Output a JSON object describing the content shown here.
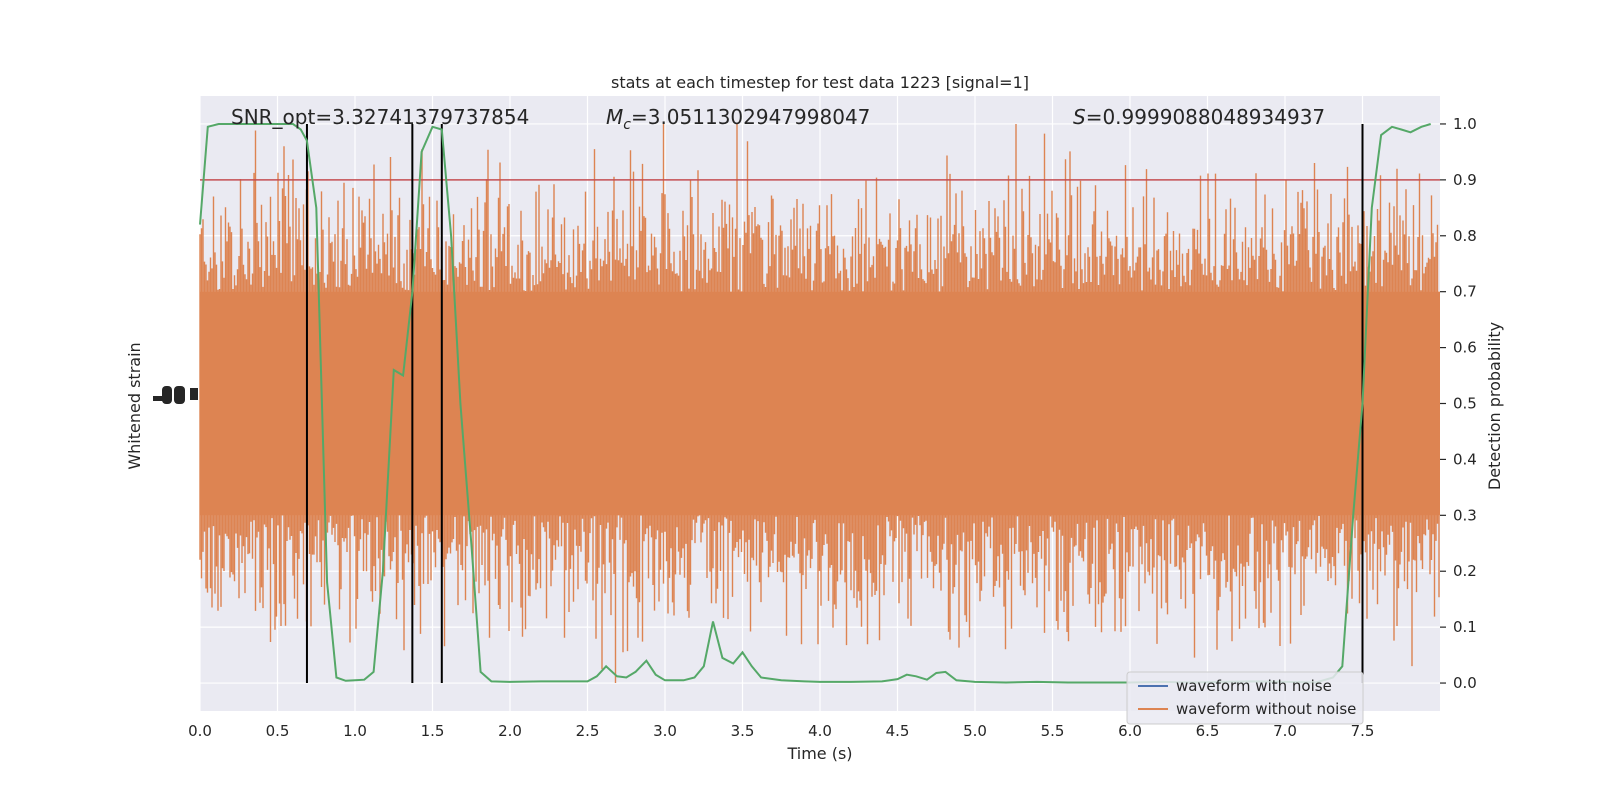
{
  "chart_data": {
    "type": "line",
    "title": "stats at each timestep for test data 1223 [signal=1]",
    "xlabel": "Time (s)",
    "ylabel_left": "Whitened strain",
    "ylabel_right": "Detection probability",
    "xlim": [
      0.0,
      8.0
    ],
    "ylim_right": [
      -0.05,
      1.05
    ],
    "xticks": [
      "0.0",
      "0.5",
      "1.0",
      "1.5",
      "2.0",
      "2.5",
      "3.0",
      "3.5",
      "4.0",
      "4.5",
      "5.0",
      "5.5",
      "6.0",
      "6.5",
      "7.0",
      "7.5"
    ],
    "yticks_right": [
      "0.0",
      "0.1",
      "0.2",
      "0.3",
      "0.4",
      "0.5",
      "0.6",
      "0.7",
      "0.8",
      "0.9",
      "1.0"
    ],
    "annotations": {
      "snr": "SNR_opt=3.32741379737854",
      "mc_symbol": "M",
      "mc_sub": "c",
      "mc_value": "=3.0511302947998047",
      "s_symbol": "S",
      "s_value": "=0.9999088048934937"
    },
    "threshold": 0.9,
    "vlines_x": [
      0.69,
      1.37,
      1.56,
      7.5
    ],
    "legend": {
      "position": "lower right",
      "entries": [
        {
          "label": "waveform with noise",
          "color": "#4c72b0"
        },
        {
          "label": "waveform without noise",
          "color": "#dd8452"
        }
      ]
    },
    "colors": {
      "background": "#eaeaf2",
      "grid": "#ffffff",
      "noise_waveform": "#dd8452",
      "probability": "#55a868",
      "threshold_line": "#c44e52",
      "vline": "#000000"
    },
    "series": [
      {
        "name": "Detection probability",
        "x": [
          0.0,
          0.05,
          0.12,
          0.2,
          0.3,
          0.4,
          0.5,
          0.6,
          0.65,
          0.69,
          0.75,
          0.82,
          0.88,
          0.94,
          1.0,
          1.06,
          1.12,
          1.18,
          1.25,
          1.31,
          1.37,
          1.43,
          1.5,
          1.56,
          1.62,
          1.68,
          1.75,
          1.81,
          1.88,
          2.0,
          2.2,
          2.4,
          2.5,
          2.56,
          2.62,
          2.69,
          2.75,
          2.81,
          2.88,
          2.94,
          3.0,
          3.06,
          3.12,
          3.19,
          3.25,
          3.31,
          3.37,
          3.44,
          3.5,
          3.56,
          3.62,
          3.75,
          3.9,
          4.0,
          4.2,
          4.4,
          4.5,
          4.56,
          4.62,
          4.69,
          4.75,
          4.81,
          4.88,
          5.0,
          5.2,
          5.4,
          5.6,
          5.8,
          6.0,
          6.2,
          6.4,
          6.6,
          6.8,
          7.0,
          7.2,
          7.31,
          7.37,
          7.44,
          7.5,
          7.56,
          7.62,
          7.69,
          7.75,
          7.81,
          7.88,
          7.94
        ],
        "y": [
          0.82,
          0.995,
          1.0,
          1.0,
          1.0,
          1.0,
          1.0,
          1.0,
          0.99,
          0.97,
          0.85,
          0.18,
          0.01,
          0.004,
          0.005,
          0.006,
          0.02,
          0.2,
          0.56,
          0.55,
          0.7,
          0.95,
          0.995,
          0.99,
          0.8,
          0.5,
          0.25,
          0.02,
          0.003,
          0.002,
          0.003,
          0.003,
          0.003,
          0.012,
          0.03,
          0.012,
          0.01,
          0.02,
          0.04,
          0.015,
          0.005,
          0.005,
          0.005,
          0.01,
          0.03,
          0.11,
          0.045,
          0.035,
          0.055,
          0.03,
          0.01,
          0.005,
          0.003,
          0.002,
          0.002,
          0.003,
          0.007,
          0.015,
          0.012,
          0.006,
          0.018,
          0.02,
          0.005,
          0.002,
          0.001,
          0.002,
          0.001,
          0.001,
          0.001,
          0.002,
          0.001,
          0.002,
          0.003,
          0.002,
          0.001,
          0.01,
          0.03,
          0.3,
          0.5,
          0.85,
          0.98,
          0.995,
          0.99,
          0.985,
          0.995,
          1.0
        ]
      }
    ]
  }
}
